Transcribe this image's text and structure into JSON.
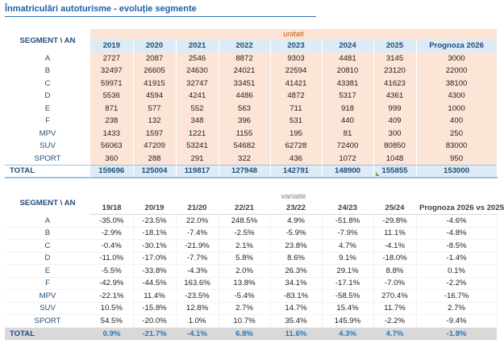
{
  "title": "Înmatriculări autoturisme - evoluție segmente",
  "table1": {
    "corner": "SEGMENT  \\ AN",
    "unit_label": "unitati",
    "years": [
      "2019",
      "2020",
      "2021",
      "2022",
      "2023",
      "2024",
      "2025",
      "Prognoza 2026"
    ],
    "rows": [
      {
        "seg": "A",
        "vals": [
          "2727",
          "2087",
          "2546",
          "8872",
          "9303",
          "4481",
          "3145",
          "3000"
        ]
      },
      {
        "seg": "B",
        "vals": [
          "32497",
          "26605",
          "24630",
          "24021",
          "22594",
          "20810",
          "23120",
          "22000"
        ]
      },
      {
        "seg": "C",
        "vals": [
          "59971",
          "41915",
          "32747",
          "33451",
          "41421",
          "43381",
          "41623",
          "38100"
        ]
      },
      {
        "seg": "D",
        "vals": [
          "5536",
          "4594",
          "4241",
          "4486",
          "4872",
          "5317",
          "4361",
          "4300"
        ]
      },
      {
        "seg": "E",
        "vals": [
          "871",
          "577",
          "552",
          "563",
          "711",
          "918",
          "999",
          "1000"
        ]
      },
      {
        "seg": "F",
        "vals": [
          "238",
          "132",
          "348",
          "396",
          "531",
          "440",
          "409",
          "400"
        ]
      },
      {
        "seg": "MPV",
        "vals": [
          "1433",
          "1597",
          "1221",
          "1155",
          "195",
          "81",
          "300",
          "250"
        ]
      },
      {
        "seg": "SUV",
        "vals": [
          "56063",
          "47209",
          "53241",
          "54682",
          "62728",
          "72400",
          "80850",
          "83000"
        ]
      },
      {
        "seg": "SPORT",
        "vals": [
          "360",
          "288",
          "291",
          "322",
          "436",
          "1072",
          "1048",
          "950"
        ]
      }
    ],
    "total": {
      "seg": "TOTAL",
      "vals": [
        "159696",
        "125004",
        "119817",
        "127948",
        "142791",
        "148900",
        "155855",
        "153000"
      ]
    }
  },
  "table2": {
    "corner": "SEGMENT  \\ AN",
    "var_label": "variatie",
    "periods": [
      "19/18",
      "20/19",
      "21/20",
      "22/21",
      "23/22",
      "24/23",
      "25/24",
      "Prognoza 2026 vs 2025"
    ],
    "rows": [
      {
        "seg": "A",
        "vals": [
          "-35.0%",
          "-23.5%",
          "22.0%",
          "248.5%",
          "4.9%",
          "-51.8%",
          "-29.8%",
          "-4.6%"
        ]
      },
      {
        "seg": "B",
        "vals": [
          "-2.9%",
          "-18.1%",
          "-7.4%",
          "-2.5%",
          "-5.9%",
          "-7.9%",
          "11.1%",
          "-4.8%"
        ]
      },
      {
        "seg": "C",
        "vals": [
          "-0.4%",
          "-30.1%",
          "-21.9%",
          "2.1%",
          "23.8%",
          "4.7%",
          "-4.1%",
          "-8.5%"
        ]
      },
      {
        "seg": "D",
        "vals": [
          "-11.0%",
          "-17.0%",
          "-7.7%",
          "5.8%",
          "8.6%",
          "9.1%",
          "-18.0%",
          "-1.4%"
        ]
      },
      {
        "seg": "E",
        "vals": [
          "-5.5%",
          "-33.8%",
          "-4.3%",
          "2.0%",
          "26.3%",
          "29.1%",
          "8.8%",
          "0.1%"
        ]
      },
      {
        "seg": "F",
        "vals": [
          "-42.9%",
          "-44.5%",
          "163.6%",
          "13.8%",
          "34.1%",
          "-17.1%",
          "-7.0%",
          "-2.2%"
        ]
      },
      {
        "seg": "MPV",
        "vals": [
          "-22.1%",
          "11.4%",
          "-23.5%",
          "-5.4%",
          "-83.1%",
          "-58.5%",
          "270.4%",
          "-16.7%"
        ]
      },
      {
        "seg": "SUV",
        "vals": [
          "10.5%",
          "-15.8%",
          "12.8%",
          "2.7%",
          "14.7%",
          "15.4%",
          "11.7%",
          "2.7%"
        ]
      },
      {
        "seg": "SPORT",
        "vals": [
          "54.5%",
          "-20.0%",
          "1.0%",
          "10.7%",
          "35.4%",
          "145.9%",
          "-2.2%",
          "-9.4%"
        ]
      }
    ],
    "total": {
      "seg": "TOTAL",
      "vals": [
        "0.9%",
        "-21.7%",
        "-4.1%",
        "6.8%",
        "11.6%",
        "4.3%",
        "4.7%",
        "-1.8%"
      ]
    }
  }
}
